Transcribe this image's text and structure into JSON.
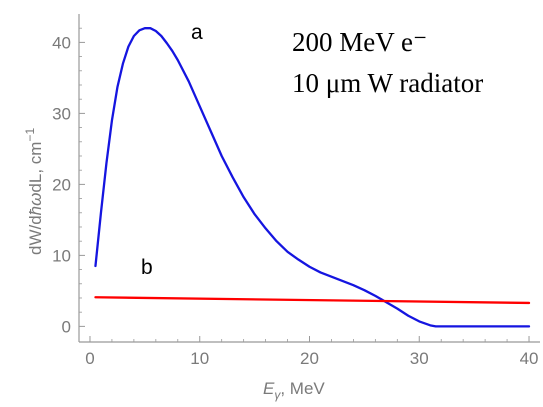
{
  "chart_data": {
    "type": "line",
    "title": "",
    "xlabel": {
      "symbol": "E",
      "subscript": "γ",
      "rest": ", MeV"
    },
    "ylabel": {
      "prefix": "dW/d",
      "hbar": "ħ",
      "omega": "ω",
      "rest": "dL, cm",
      "exponent": "−1"
    },
    "xlim": [
      -1,
      41
    ],
    "ylim": [
      -2.2,
      44
    ],
    "xticks": [
      "0",
      "10",
      "20",
      "30",
      "40"
    ],
    "yticks": [
      "0",
      "10",
      "20",
      "30",
      "40"
    ],
    "grid": false,
    "annotations": [
      "200 MeV e⁻",
      "10 μm W radiator"
    ],
    "series": [
      {
        "name": "a",
        "color": "#1515e0",
        "x": [
          0.5,
          1.0,
          1.5,
          2.0,
          2.5,
          3.0,
          3.5,
          4.0,
          4.5,
          5.0,
          5.5,
          6.0,
          6.5,
          7.0,
          7.5,
          8.0,
          9.0,
          10.0,
          11.0,
          12.0,
          13.0,
          14.0,
          15.0,
          16.0,
          17.0,
          18.0,
          19.0,
          20.0,
          21.0,
          22.0,
          23.0,
          24.0,
          25.0,
          26.0,
          27.0,
          28.0,
          29.0,
          30.0,
          31.0,
          31.5,
          32.0,
          33.0,
          35.0,
          37.0,
          40.0
        ],
        "y": [
          8.5,
          16.0,
          23.0,
          29.0,
          33.7,
          37.0,
          39.4,
          40.9,
          41.7,
          42.0,
          42.0,
          41.6,
          40.9,
          39.9,
          38.8,
          37.5,
          34.5,
          31.0,
          27.5,
          24.0,
          21.0,
          18.2,
          15.8,
          13.8,
          12.0,
          10.5,
          9.4,
          8.4,
          7.6,
          7.0,
          6.4,
          5.8,
          5.1,
          4.3,
          3.4,
          2.5,
          1.5,
          0.7,
          0.15,
          0.0,
          0.0,
          0.0,
          0.0,
          0.0,
          0.0
        ]
      },
      {
        "name": "b",
        "color": "#ff0000",
        "x": [
          0.5,
          40.0
        ],
        "y": [
          4.1,
          3.3
        ]
      }
    ]
  }
}
